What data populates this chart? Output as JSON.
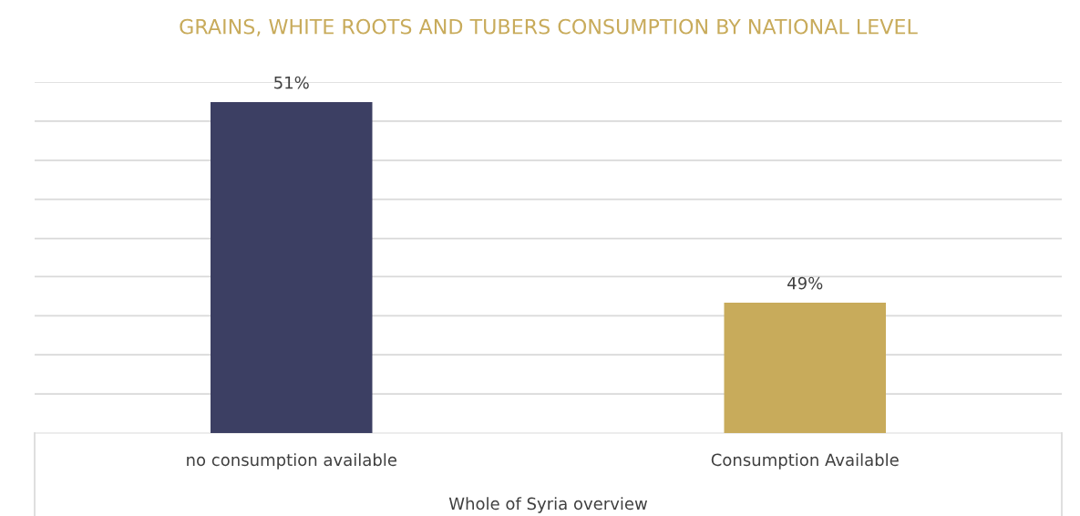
{
  "chart_data": {
    "type": "bar",
    "title": "GRAINS, WHITE ROOTS AND TUBERS CONSUMPTION BY NATIONAL LEVEL",
    "xlabel": "Whole of Syria overview",
    "categories": [
      "no consumption available",
      "Consumption Available"
    ],
    "values": [
      51,
      49
    ],
    "colors": [
      "#3c3f63",
      "#c8ab5b"
    ],
    "value_labels": [
      "51%",
      "49%"
    ],
    "ylim": [
      47.7,
      51.2
    ],
    "yticks": [
      {
        "value": 48.09,
        "label": null
      },
      {
        "value": 48.48,
        "label": null
      },
      {
        "value": 48.87,
        "label": null
      },
      {
        "value": 49.26,
        "label": null
      },
      {
        "value": 49.64,
        "label": null
      },
      {
        "value": 50.03,
        "label": null
      },
      {
        "value": 50.42,
        "label": null
      },
      {
        "value": 50.81,
        "label": null
      },
      {
        "value": 51.2,
        "label": null
      }
    ],
    "grid": "y",
    "tick_labels": "x"
  }
}
